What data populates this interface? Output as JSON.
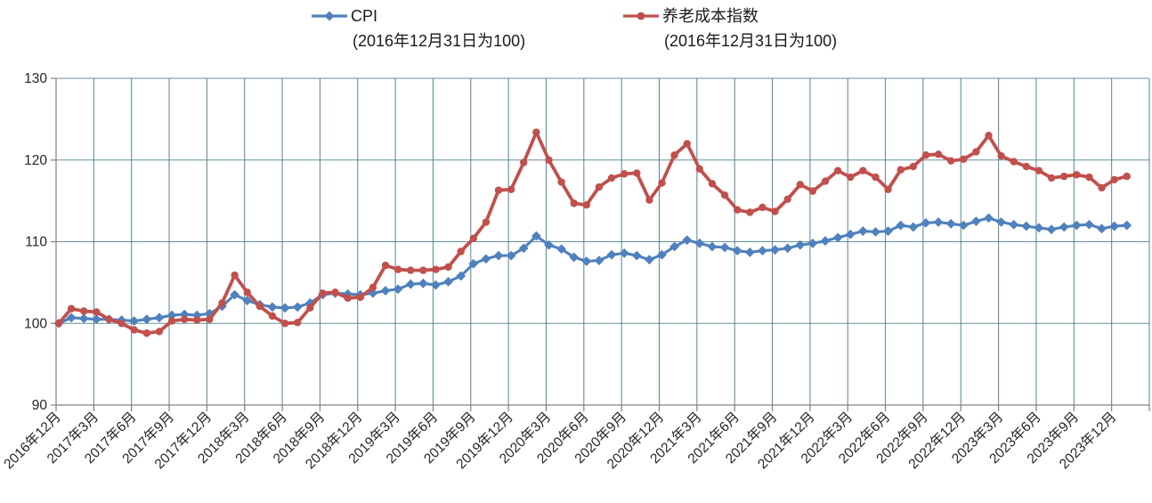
{
  "chart_data": {
    "type": "line",
    "title": "",
    "xlabel": "",
    "ylabel": "",
    "ylim": [
      90,
      130
    ],
    "y_ticks": [
      "90",
      "100",
      "110",
      "120",
      "130"
    ],
    "y_tick_values": [
      90,
      100,
      110,
      120,
      130
    ],
    "grid": {
      "vline_color": "#4c7d8d",
      "hline_color": "#4c7d8d",
      "axis_color": "#808080",
      "text_color": "#262626",
      "background": "#ffffff",
      "vlines_every_n_months": 3
    },
    "legend_position": "top",
    "x_tick_labels": [
      "2016年12月",
      "2017年3月",
      "2017年6月",
      "2017年9月",
      "2017年12月",
      "2018年3月",
      "2018年6月",
      "2018年9月",
      "2018年12月",
      "2019年3月",
      "2019年6月",
      "2019年9月",
      "2019年12月",
      "2020年3月",
      "2020年6月",
      "2020年9月",
      "2020年12月",
      "2021年3月",
      "2021年6月",
      "2021年9月",
      "2021年12月",
      "2022年3月",
      "2022年6月",
      "2022年9月",
      "2022年12月",
      "2023年3月",
      "2023年6月",
      "2023年9月",
      "2023年12月"
    ],
    "x_tick_label_step": 3,
    "n_points": 86,
    "x_first_point_label": "2016年12月",
    "series": [
      {
        "name": "CPI",
        "subtitle": "(2016年12月31日为100)",
        "color": "#4f81bd",
        "marker": "diamond",
        "values": [
          100,
          100.7,
          100.6,
          100.5,
          100.5,
          100.4,
          100.3,
          100.5,
          100.7,
          101.0,
          101.1,
          101.0,
          101.2,
          102.1,
          103.5,
          102.8,
          102.3,
          102.0,
          101.9,
          102.0,
          102.5,
          103.5,
          103.7,
          103.6,
          103.5,
          103.7,
          104.0,
          104.2,
          104.8,
          104.9,
          104.7,
          105.1,
          105.8,
          107.3,
          107.9,
          108.3,
          108.3,
          109.2,
          110.7,
          109.6,
          109.1,
          108.1,
          107.6,
          107.7,
          108.4,
          108.6,
          108.3,
          107.8,
          108.4,
          109.4,
          110.2,
          109.8,
          109.4,
          109.3,
          108.9,
          108.7,
          108.9,
          109.0,
          109.2,
          109.6,
          109.8,
          110.1,
          110.5,
          110.9,
          111.3,
          111.2,
          111.3,
          112.0,
          111.8,
          112.3,
          112.4,
          112.2,
          112.0,
          112.5,
          112.9,
          112.4,
          112.1,
          111.9,
          111.7,
          111.5,
          111.8,
          112.0,
          112.1,
          111.6,
          111.9,
          112.0
        ]
      },
      {
        "name": "养老成本指数",
        "subtitle": "(2016年12月31日为100)",
        "color": "#c0504d",
        "marker": "circle",
        "values": [
          100,
          101.8,
          101.5,
          101.4,
          100.5,
          100.0,
          99.2,
          98.8,
          99.0,
          100.3,
          100.5,
          100.4,
          100.5,
          102.5,
          105.9,
          103.8,
          102.1,
          100.9,
          100.0,
          100.1,
          101.9,
          103.7,
          103.8,
          103.1,
          103.2,
          104.4,
          107.1,
          106.6,
          106.5,
          106.5,
          106.6,
          106.9,
          108.8,
          110.4,
          112.4,
          116.3,
          116.4,
          119.7,
          123.4,
          120.0,
          117.3,
          114.7,
          114.5,
          116.7,
          117.8,
          118.3,
          118.4,
          115.1,
          117.2,
          120.6,
          122.0,
          118.9,
          117.1,
          115.7,
          113.9,
          113.6,
          114.2,
          113.7,
          115.2,
          117.0,
          116.2,
          117.4,
          118.7,
          117.9,
          118.7,
          117.9,
          116.4,
          118.8,
          119.2,
          120.6,
          120.7,
          119.9,
          120.1,
          121.0,
          123.0,
          120.5,
          119.8,
          119.2,
          118.7,
          117.8,
          118.0,
          118.2,
          117.9,
          116.6,
          117.6,
          118.0
        ]
      }
    ]
  }
}
